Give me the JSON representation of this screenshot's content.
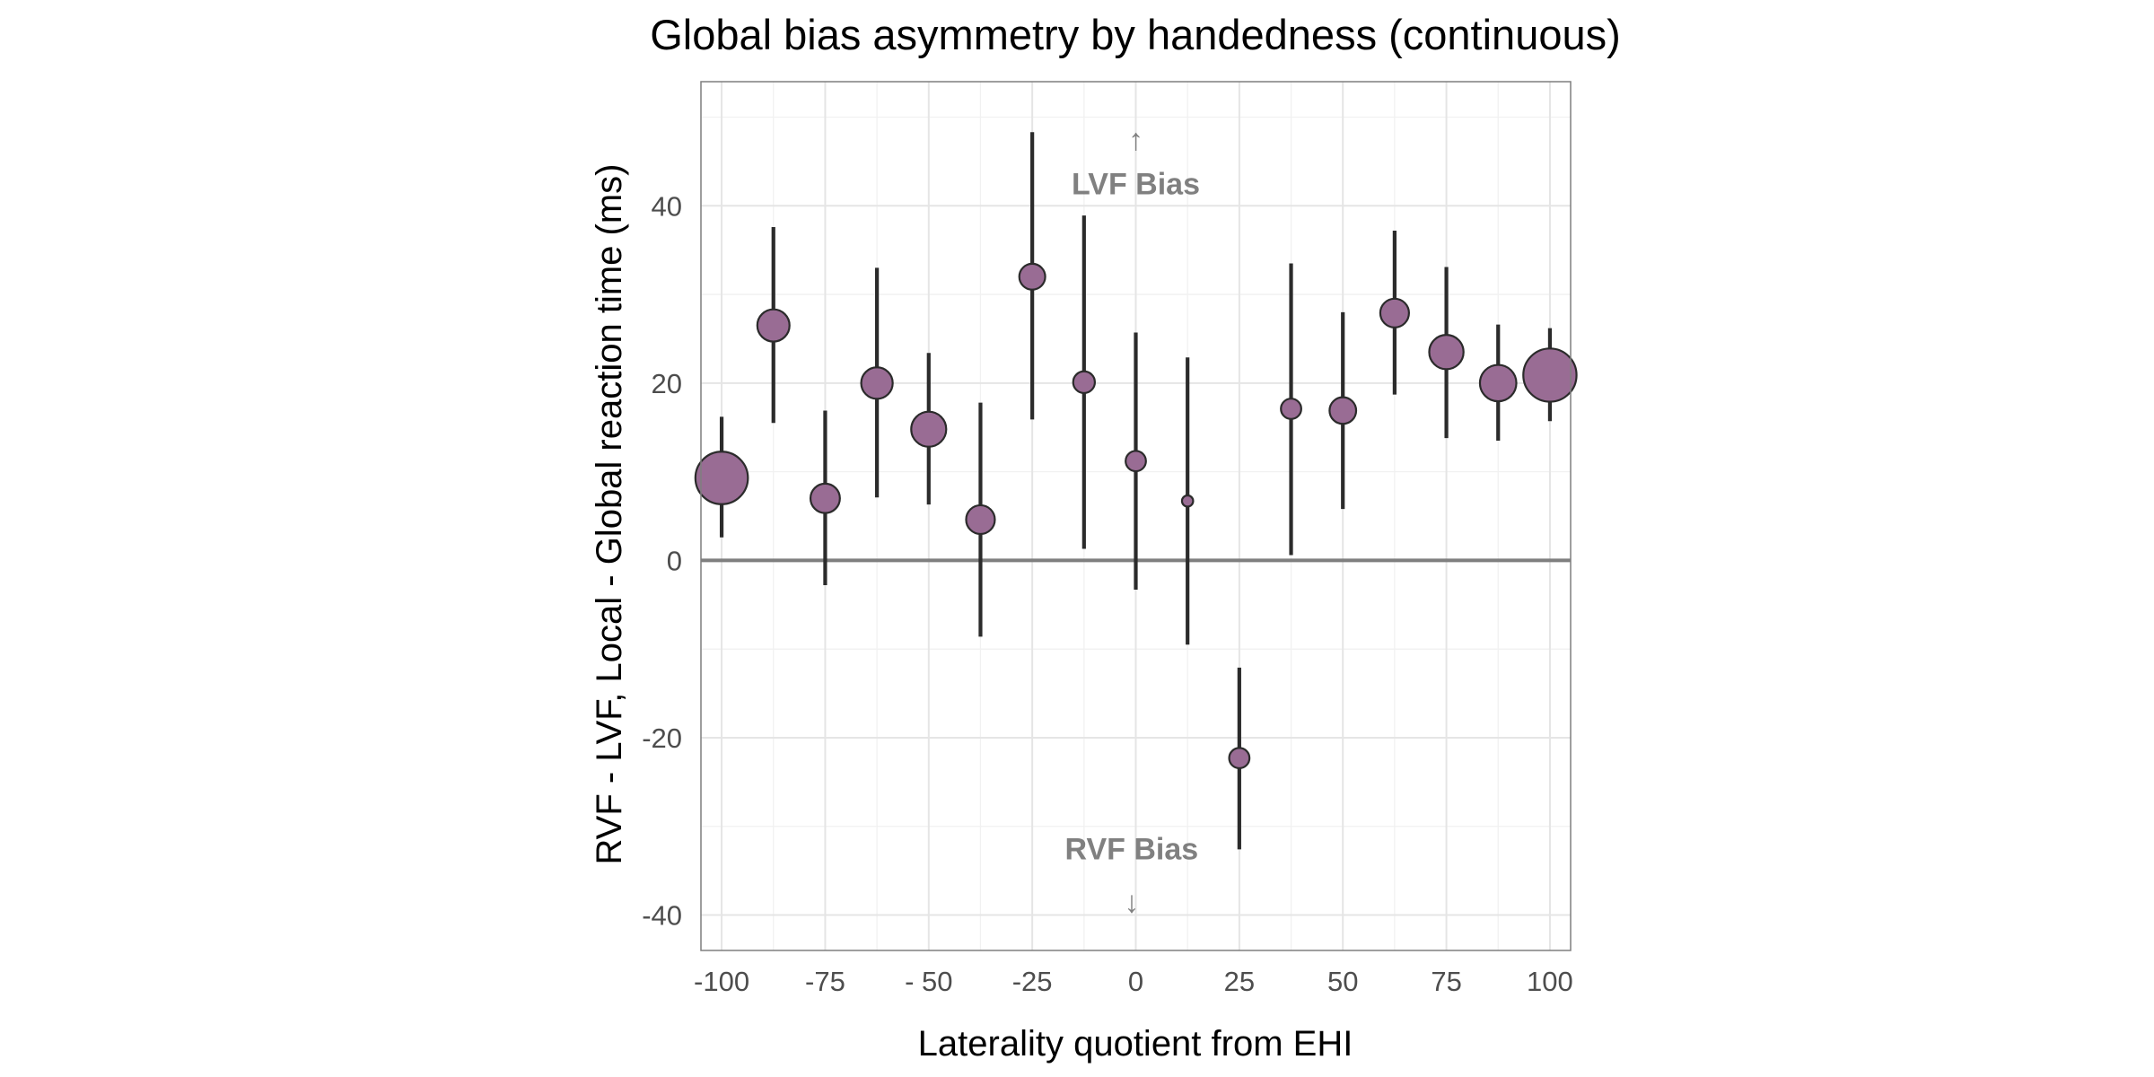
{
  "chart_data": {
    "type": "scatter",
    "title": "Global bias asymmetry by handedness (continuous)",
    "xlabel": "Laterality quotient from EHI",
    "ylabel": "RVF - LVF, Local - Global reaction time (ms)",
    "xlim": [
      -105,
      105
    ],
    "ylim": [
      -44,
      54
    ],
    "x_ticks": [
      -100,
      -75,
      -50,
      -25,
      0,
      25,
      50,
      75,
      100
    ],
    "x_tick_labels": [
      "-100",
      "-75",
      "- 50",
      "-25",
      "0",
      "25",
      "50",
      "75",
      "100"
    ],
    "y_ticks": [
      -40,
      -20,
      0,
      20,
      40
    ],
    "y_tick_labels": [
      "-40",
      "-20",
      "0",
      "20",
      "40"
    ],
    "grid": true,
    "reference_line_y": 0,
    "point_color": "#996c94",
    "point_stroke": "#2b2b2b",
    "errorbar_color": "#2b2b2b",
    "annotation_color": "#808080",
    "points": [
      {
        "x": -100,
        "y": 9.3,
        "lo": 2.6,
        "hi": 16.2,
        "size": 7.5
      },
      {
        "x": -87.5,
        "y": 26.5,
        "lo": 15.5,
        "hi": 37.6,
        "size": 4.6
      },
      {
        "x": -75,
        "y": 7.0,
        "lo": -2.8,
        "hi": 16.9,
        "size": 4.2
      },
      {
        "x": -62.5,
        "y": 20.0,
        "lo": 7.1,
        "hi": 33.0,
        "size": 4.5
      },
      {
        "x": -50,
        "y": 14.8,
        "lo": 6.3,
        "hi": 23.4,
        "size": 5.0
      },
      {
        "x": -37.5,
        "y": 4.6,
        "lo": -8.6,
        "hi": 17.8,
        "size": 4.1
      },
      {
        "x": -25,
        "y": 32.0,
        "lo": 15.9,
        "hi": 48.3,
        "size": 3.7
      },
      {
        "x": -12.5,
        "y": 20.1,
        "lo": 1.3,
        "hi": 38.9,
        "size": 3.1
      },
      {
        "x": 0,
        "y": 11.2,
        "lo": -3.3,
        "hi": 25.7,
        "size": 2.9
      },
      {
        "x": 12.5,
        "y": 6.7,
        "lo": -9.5,
        "hi": 22.9,
        "size": 1.6
      },
      {
        "x": 25,
        "y": -22.3,
        "lo": -32.6,
        "hi": -12.1,
        "size": 2.9
      },
      {
        "x": 37.5,
        "y": 17.1,
        "lo": 0.6,
        "hi": 33.5,
        "size": 2.9
      },
      {
        "x": 50,
        "y": 16.9,
        "lo": 5.8,
        "hi": 28.0,
        "size": 3.8
      },
      {
        "x": 62.5,
        "y": 27.9,
        "lo": 18.7,
        "hi": 37.2,
        "size": 4.1
      },
      {
        "x": 75,
        "y": 23.5,
        "lo": 13.8,
        "hi": 33.1,
        "size": 4.9
      },
      {
        "x": 87.5,
        "y": 20.0,
        "lo": 13.5,
        "hi": 26.6,
        "size": 5.2
      },
      {
        "x": 100,
        "y": 20.9,
        "lo": 15.7,
        "hi": 26.2,
        "size": 7.6
      }
    ],
    "annotations": [
      {
        "text": "LVF Bias",
        "arrow": "↑",
        "x": 0,
        "y": 42.5,
        "arrow_y": 47.5
      },
      {
        "text": "RVF Bias",
        "arrow": "↓",
        "x": -1,
        "y": -32.5,
        "arrow_y": -38.5
      }
    ]
  }
}
